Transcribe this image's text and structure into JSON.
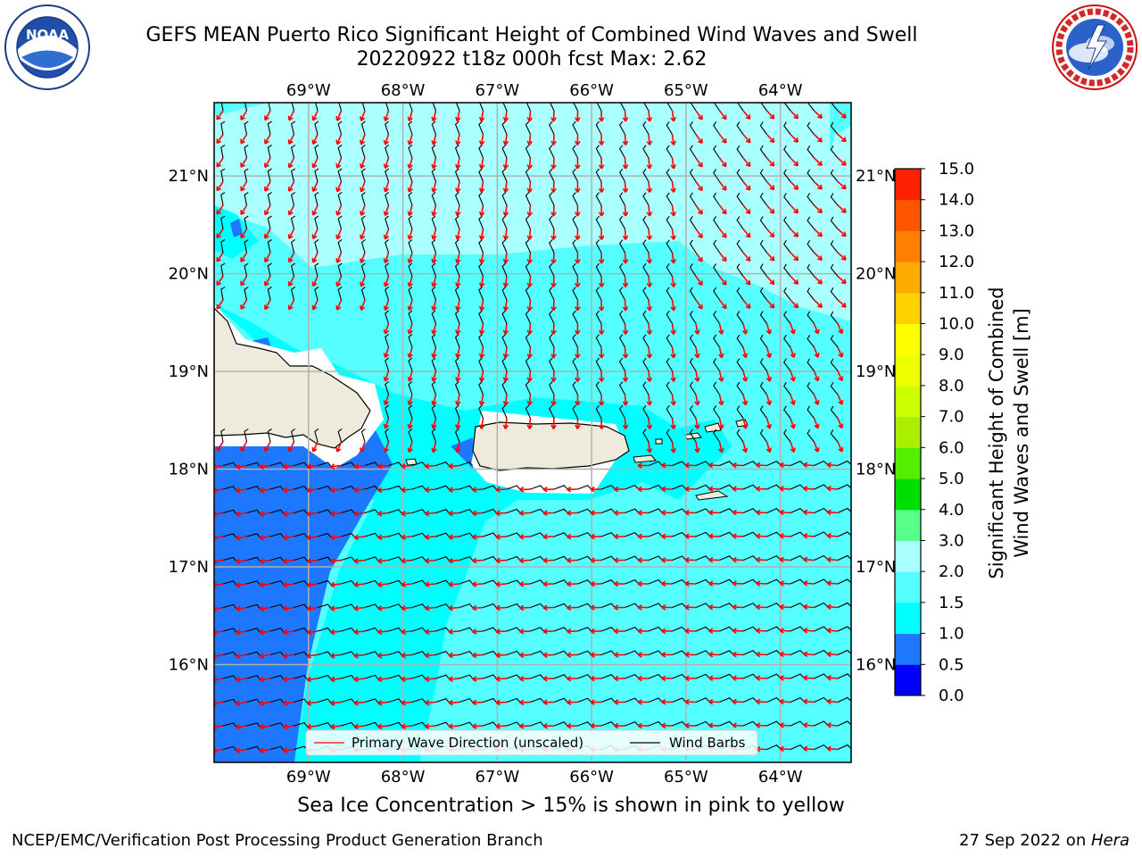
{
  "header": {
    "title_line1": "GEFS MEAN Puerto Rico Significant Height of Combined Wind Waves and Swell",
    "title_line2": "20220922 t18z 000h fcst   Max: 2.62"
  },
  "logos": {
    "left": {
      "text": "NOAA",
      "ring_text": "NATIONAL OCEANIC AND ATMOSPHERIC ADMINISTRATION · U.S. DEPARTMENT OF COMMERCE"
    },
    "right": {
      "text": "NATIONAL WEATHER SERVICE"
    }
  },
  "chart_data": {
    "type": "heatmap",
    "title": "GEFS MEAN Puerto Rico Significant Height of Combined Wind Waves and Swell",
    "subtitle": "20220922 t18z 000h fcst   Max: 2.62",
    "x_ticks": [
      "69°W",
      "68°W",
      "67°W",
      "66°W",
      "65°W",
      "64°W"
    ],
    "x_tick_values": [
      -69,
      -68,
      -67,
      -66,
      -65,
      -64
    ],
    "y_ticks": [
      "21°N",
      "20°N",
      "19°N",
      "18°N",
      "17°N",
      "16°N"
    ],
    "y_tick_values": [
      21,
      20,
      19,
      18,
      17,
      16
    ],
    "xlim": [
      -70.0,
      -63.25
    ],
    "ylim": [
      15.0,
      21.75
    ],
    "grid": true,
    "max_value": 2.62,
    "colorbar": {
      "label_line1": "Significant Height of Combined",
      "label_line2": "Wind Waves and Swell [m]",
      "levels": [
        0.0,
        0.5,
        1.0,
        1.5,
        2.0,
        3.0,
        4.0,
        5.0,
        6.0,
        7.0,
        8.0,
        9.0,
        10.0,
        11.0,
        12.0,
        13.0,
        14.0,
        15.0
      ],
      "tick_labels": [
        "0.0",
        "0.5",
        "1.0",
        "1.5",
        "2.0",
        "3.0",
        "4.0",
        "5.0",
        "6.0",
        "7.0",
        "8.0",
        "9.0",
        "10.0",
        "11.0",
        "12.0",
        "13.0",
        "14.0",
        "15.0"
      ],
      "colors": [
        "#0000ff",
        "#1e78ff",
        "#00ffff",
        "#55ffff",
        "#aaffff",
        "#55ff88",
        "#00dd00",
        "#55ee00",
        "#aaee00",
        "#ccff00",
        "#eeff00",
        "#ffff00",
        "#ffd000",
        "#ffaa00",
        "#ff8000",
        "#ff5500",
        "#ff2000"
      ]
    },
    "legend": {
      "placement": "bottom",
      "entries": [
        {
          "label": "Primary Wave Direction (unscaled)",
          "color": "#ff0000"
        },
        {
          "label": "Wind Barbs",
          "color": "#000000"
        }
      ]
    },
    "colors": {
      "land": "#efebdc",
      "ocean_low": "#1e78ff",
      "ocean_mid": "#00ffff",
      "ocean_high": "#55ffff",
      "ocean_top": "#aaffff",
      "arrow": "#ff0000",
      "barb": "#000000",
      "grid": "#b0b0b0"
    }
  },
  "annotation": "Sea Ice Concentration > 15% is shown in pink to yellow",
  "footer": {
    "left": "NCEP/EMC/Verification Post Processing Product Generation Branch",
    "date": "27 Sep 2022 on ",
    "machine": "Hera"
  }
}
